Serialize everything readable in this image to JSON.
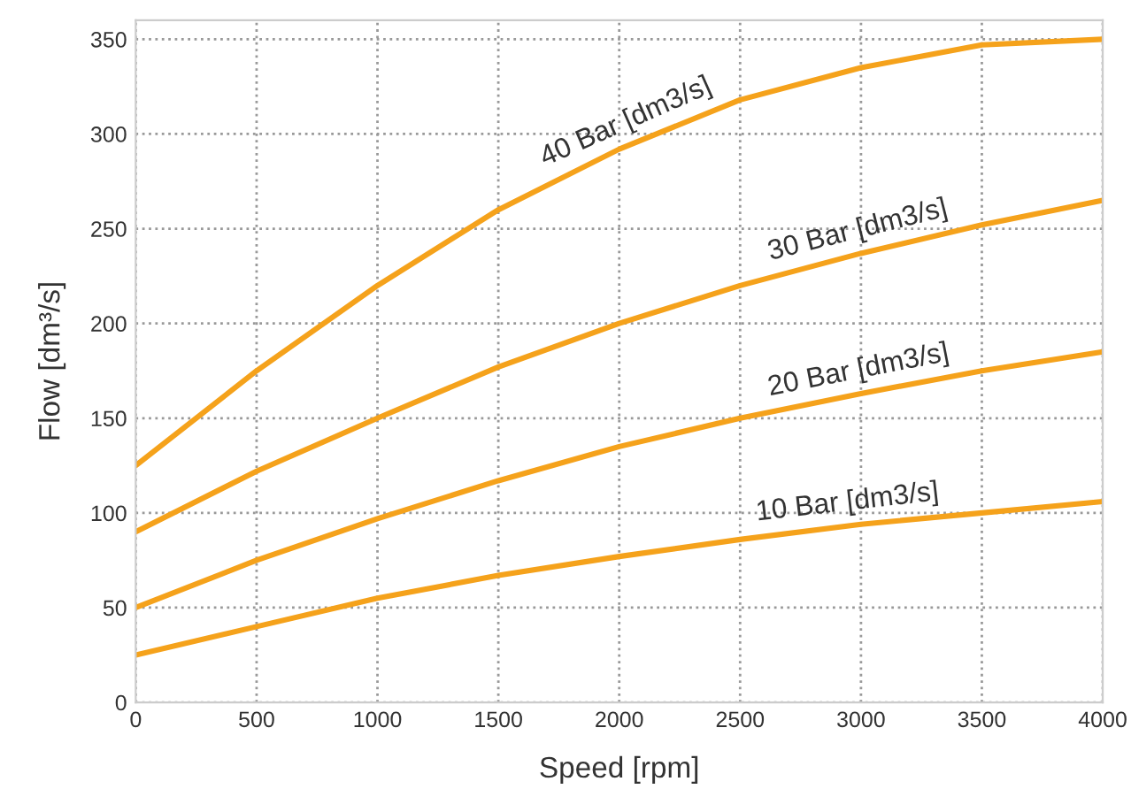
{
  "chart_data": {
    "type": "line",
    "xlabel": "Speed [rpm]",
    "ylabel": "Flow [dm³/s]",
    "x": [
      0,
      500,
      1000,
      1500,
      2000,
      2500,
      3000,
      3500,
      4000
    ],
    "series": [
      {
        "name": "40 Bar [dm3/s]",
        "color": "#f5a21b",
        "values": [
          125,
          175,
          220,
          260,
          292,
          318,
          335,
          347,
          350
        ]
      },
      {
        "name": "30 Bar [dm3/s]",
        "color": "#f5a21b",
        "values": [
          90,
          122,
          150,
          177,
          200,
          220,
          237,
          252,
          265
        ]
      },
      {
        "name": "20 Bar [dm3/s]",
        "color": "#f5a21b",
        "values": [
          50,
          75,
          97,
          117,
          135,
          150,
          163,
          175,
          185
        ]
      },
      {
        "name": "10 Bar [dm3/s]",
        "color": "#f5a21b",
        "values": [
          25,
          40,
          55,
          67,
          77,
          86,
          94,
          100,
          106
        ]
      }
    ],
    "xlim": [
      0,
      4000
    ],
    "xticks": [
      0,
      500,
      1000,
      1500,
      2000,
      2500,
      3000,
      3500,
      4000
    ],
    "ylim": [
      0,
      360
    ],
    "yticks": [
      0,
      50,
      100,
      150,
      200,
      250,
      300,
      350
    ],
    "grid": true,
    "legend": false,
    "marker": "none",
    "line_style": "solid"
  }
}
